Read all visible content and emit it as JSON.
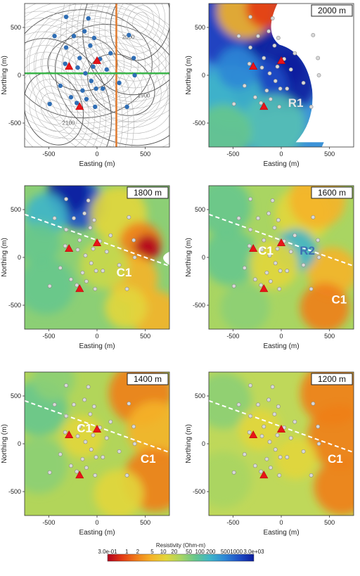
{
  "chart_data": [
    {
      "type": "map",
      "panel": "contour",
      "xlabel": "Easting (m)",
      "ylabel": "Northing (m)",
      "xticks": [
        "-500",
        "0",
        "500"
      ],
      "yticks": [
        "500",
        "0",
        "-500"
      ],
      "xlim": [
        -750,
        750
      ],
      "ylim": [
        -750,
        750
      ],
      "contour_labels": [
        "1900",
        "2000",
        "2100"
      ],
      "section_lines": [
        {
          "orientation": "vertical",
          "easting": 200,
          "color": "#e07a2e"
        },
        {
          "orientation": "horizontal",
          "northing": 20,
          "color": "#3bb54a"
        }
      ],
      "stations": [
        [
          -320,
          610
        ],
        [
          -90,
          595
        ],
        [
          -240,
          410
        ],
        [
          -440,
          410
        ],
        [
          -130,
          460
        ],
        [
          -30,
          390
        ],
        [
          -320,
          290
        ],
        [
          -70,
          310
        ],
        [
          -180,
          180
        ],
        [
          140,
          230
        ],
        [
          100,
          60
        ],
        [
          -330,
          120
        ],
        [
          -200,
          80
        ],
        [
          -120,
          20
        ],
        [
          -40,
          90
        ],
        [
          30,
          170
        ],
        [
          -60,
          -60
        ],
        [
          -10,
          -140
        ],
        [
          -150,
          -160
        ],
        [
          -270,
          -230
        ],
        [
          -210,
          -290
        ],
        [
          -110,
          -250
        ],
        [
          -20,
          -330
        ],
        [
          -490,
          -300
        ],
        [
          -380,
          -110
        ],
        [
          330,
          420
        ],
        [
          390,
          0
        ],
        [
          380,
          180
        ],
        [
          310,
          -330
        ],
        [
          230,
          -80
        ],
        [
          60,
          -140
        ]
      ],
      "vents": [
        [
          -290,
          90
        ],
        [
          -180,
          -330
        ],
        [
          0,
          150
        ]
      ]
    },
    {
      "type": "map",
      "panel": "resistivity",
      "depth_label": "2000 m",
      "xlabel": "Easting (m)",
      "ylabel": "Northing (m)",
      "xticks": [
        "-500",
        "0",
        "500"
      ],
      "yticks": [
        "500",
        "0",
        "-500"
      ],
      "xlim": [
        -750,
        750
      ],
      "ylim": [
        -750,
        750
      ],
      "annotations": [
        {
          "text": "R1",
          "x": 150,
          "y": -330,
          "color": "#e6e6e6"
        }
      ]
    },
    {
      "type": "map",
      "panel": "resistivity",
      "depth_label": "1800 m",
      "xlabel": "Easting (m)",
      "ylabel": "Northing (m)",
      "xticks": [
        "-500",
        "0",
        "500"
      ],
      "yticks": [
        "500",
        "0",
        "-500"
      ],
      "xlim": [
        -750,
        750
      ],
      "ylim": [
        -750,
        750
      ],
      "annotations": [
        {
          "text": "C1",
          "x": 280,
          "y": -200,
          "color": "#ffffff"
        }
      ]
    },
    {
      "type": "map",
      "panel": "resistivity",
      "depth_label": "1600 m",
      "xlabel": "Easting (m)",
      "ylabel": "Northing (m)",
      "xticks": [
        "-500",
        "0",
        "500"
      ],
      "yticks": [
        "500",
        "0",
        "-500"
      ],
      "xlim": [
        -750,
        750
      ],
      "ylim": [
        -750,
        750
      ],
      "annotations": [
        {
          "text": "C1",
          "x": -160,
          "y": 30,
          "color": "#ffffff"
        },
        {
          "text": "R2",
          "x": 270,
          "y": 30,
          "color": "#3d6fb3"
        },
        {
          "text": "C1",
          "x": 600,
          "y": -480,
          "color": "#ffffff"
        }
      ]
    },
    {
      "type": "map",
      "panel": "resistivity",
      "depth_label": "1400 m",
      "xlabel": "Easting (m)",
      "ylabel": "Northing (m)",
      "xticks": [
        "-500",
        "0",
        "500"
      ],
      "yticks": [
        "500",
        "0",
        "-500"
      ],
      "xlim": [
        -750,
        750
      ],
      "ylim": [
        -750,
        750
      ],
      "annotations": [
        {
          "text": "C1",
          "x": -130,
          "y": 120,
          "color": "#ffffff"
        },
        {
          "text": "C1",
          "x": 530,
          "y": -200,
          "color": "#ffffff"
        }
      ]
    },
    {
      "type": "map",
      "panel": "resistivity",
      "depth_label": "1200 m",
      "xlabel": "Easting (m)",
      "ylabel": "Northing (m)",
      "xticks": [
        "-500",
        "0",
        "500"
      ],
      "yticks": [
        "500",
        "0",
        "-500"
      ],
      "xlim": [
        -750,
        750
      ],
      "ylim": [
        -750,
        750
      ],
      "annotations": [
        {
          "text": "C1",
          "x": 560,
          "y": -200,
          "color": "#ffffff"
        }
      ]
    }
  ],
  "colorbar": {
    "title": "Resistivity (Ohm-m)",
    "scale": "log",
    "range": [
      0.3,
      3000
    ],
    "tick_labels": [
      "3.0e-01",
      "1",
      "2",
      "5",
      "10",
      "20",
      "50",
      "100",
      "200",
      "500",
      "1000",
      "3.0e+03"
    ],
    "tick_values": [
      0.3,
      1,
      2,
      5,
      10,
      20,
      50,
      100,
      200,
      500,
      1000,
      3000
    ],
    "colormap": [
      "#b2001d",
      "#e33b14",
      "#f07e1a",
      "#f5b428",
      "#e2d63c",
      "#a9d562",
      "#66c68d",
      "#3fb5c9",
      "#2e87d6",
      "#1f4fc6",
      "#0c1d9e"
    ]
  }
}
